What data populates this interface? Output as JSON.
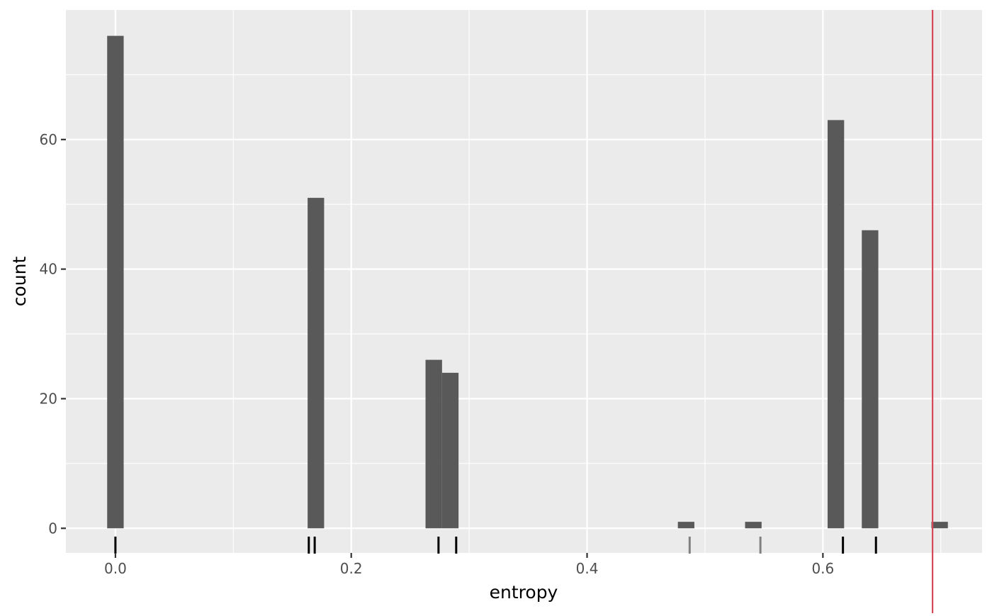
{
  "chart_data": {
    "type": "bar",
    "title": "",
    "xlabel": "entropy",
    "ylabel": "count",
    "xlim": [
      -0.042,
      0.735
    ],
    "ylim": [
      -3.8,
      80
    ],
    "x_ticks": [
      0.0,
      0.2,
      0.4,
      0.6
    ],
    "x_tick_labels": [
      "0.0",
      "0.2",
      "0.4",
      "0.6"
    ],
    "y_ticks": [
      0,
      20,
      40,
      60
    ],
    "y_tick_labels": [
      "0",
      "20",
      "40",
      "60"
    ],
    "grid": true,
    "bin_width": 0.014,
    "bars": [
      {
        "x": 0.0,
        "count": 76
      },
      {
        "x": 0.17,
        "count": 51
      },
      {
        "x": 0.27,
        "count": 26
      },
      {
        "x": 0.284,
        "count": 24
      },
      {
        "x": 0.484,
        "count": 1
      },
      {
        "x": 0.541,
        "count": 1
      },
      {
        "x": 0.611,
        "count": 63
      },
      {
        "x": 0.64,
        "count": 46
      },
      {
        "x": 0.699,
        "count": 1
      }
    ],
    "rug": [
      {
        "x": 0.0,
        "shade": "dark"
      },
      {
        "x": 0.164,
        "shade": "dark"
      },
      {
        "x": 0.169,
        "shade": "dark"
      },
      {
        "x": 0.274,
        "shade": "dark"
      },
      {
        "x": 0.289,
        "shade": "dark"
      },
      {
        "x": 0.487,
        "shade": "light"
      },
      {
        "x": 0.547,
        "shade": "light"
      },
      {
        "x": 0.617,
        "shade": "dark"
      },
      {
        "x": 0.645,
        "shade": "dark"
      }
    ],
    "reference_line": {
      "x": 0.693,
      "color": "#d9475a"
    },
    "colors": {
      "panel": "#ebebeb",
      "grid": "#ffffff",
      "bar": "#595959",
      "rug_dark": "#000000",
      "rug_light": "#808080"
    }
  }
}
